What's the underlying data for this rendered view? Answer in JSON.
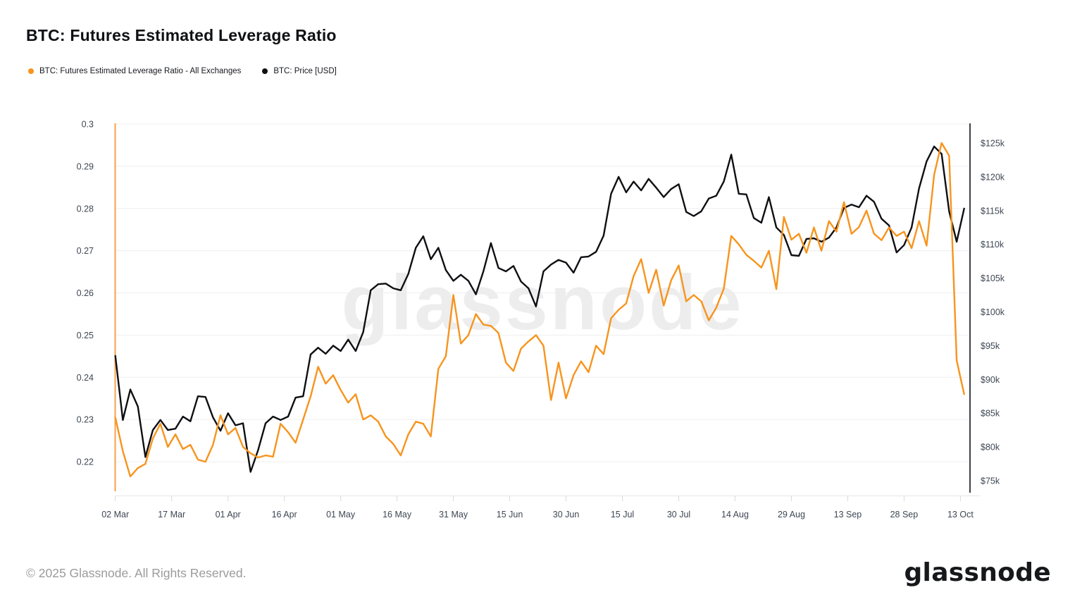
{
  "header": {
    "title": "BTC: Futures Estimated Leverage Ratio"
  },
  "legend": [
    {
      "label": "BTC: Futures Estimated Leverage Ratio - All Exchanges",
      "color": "#f7941d"
    },
    {
      "label": "BTC: Price [USD]",
      "color": "#0e0f12"
    }
  ],
  "watermark": {
    "text": "glassnode",
    "color": "#ededee"
  },
  "footer": {
    "copyright": "© 2025 Glassnode. All Rights Reserved.",
    "logo": "glassnode"
  },
  "colors": {
    "grid": "#f0f0f1",
    "axis_text": "#3e4753",
    "tick_mark": "#d9d9d9",
    "baseline": "#e6e6e6",
    "left_spine": "#f8a14b",
    "right_spine": "#3c4046"
  },
  "chart_data": {
    "type": "line",
    "title": "BTC: Futures Estimated Leverage Ratio",
    "legend_position": "top-left",
    "grid": "horizontal",
    "x_step_days": 2,
    "x_total_days": 226,
    "x_tick_days": [
      0,
      15,
      30,
      45,
      60,
      75,
      90,
      105,
      120,
      135,
      150,
      165,
      180,
      195,
      210,
      225
    ],
    "x_tick_labels": [
      "02 Mar",
      "17 Mar",
      "01 Apr",
      "16 Apr",
      "01 May",
      "16 May",
      "31 May",
      "15 Jun",
      "30 Jun",
      "15 Jul",
      "30 Jul",
      "14 Aug",
      "29 Aug",
      "13 Sep",
      "28 Sep",
      "13 Oct"
    ],
    "left_axis": {
      "range": [
        0.213,
        0.3
      ],
      "tick_values": [
        0.3,
        0.29,
        0.28,
        0.27,
        0.26,
        0.25,
        0.24,
        0.23,
        0.22
      ],
      "tick_labels": [
        "0.3",
        "0.29",
        "0.28",
        "0.27",
        "0.26",
        "0.25",
        "0.24",
        "0.23",
        "0.22"
      ]
    },
    "right_axis": {
      "range": [
        73.43,
        127.82
      ],
      "tick_values": [
        125,
        120,
        115,
        110,
        105,
        100,
        95,
        90,
        85,
        80,
        75
      ],
      "tick_labels": [
        "$125k",
        "$120k",
        "$115k",
        "$110k",
        "$105k",
        "$100k",
        "$95k",
        "$90k",
        "$85k",
        "$80k",
        "$75k"
      ]
    },
    "series": [
      {
        "name": "BTC: Futures Estimated Leverage Ratio - All Exchanges",
        "axis": "left",
        "color": "#f7941d",
        "values": [
          0.2305,
          0.2225,
          0.2165,
          0.2185,
          0.2195,
          0.2255,
          0.229,
          0.2235,
          0.2265,
          0.223,
          0.224,
          0.2205,
          0.22,
          0.224,
          0.231,
          0.2265,
          0.228,
          0.2235,
          0.222,
          0.221,
          0.2215,
          0.2212,
          0.229,
          0.227,
          0.2245,
          0.23,
          0.2355,
          0.2425,
          0.2385,
          0.2405,
          0.237,
          0.234,
          0.236,
          0.23,
          0.231,
          0.2295,
          0.226,
          0.2242,
          0.2215,
          0.2265,
          0.2295,
          0.229,
          0.226,
          0.242,
          0.245,
          0.2595,
          0.248,
          0.25,
          0.255,
          0.2525,
          0.2522,
          0.2505,
          0.2435,
          0.2415,
          0.2468,
          0.2485,
          0.25,
          0.2475,
          0.2346,
          0.2435,
          0.235,
          0.2405,
          0.2438,
          0.2412,
          0.2475,
          0.2455,
          0.254,
          0.256,
          0.2575,
          0.264,
          0.268,
          0.26,
          0.2655,
          0.257,
          0.263,
          0.2665,
          0.258,
          0.2595,
          0.258,
          0.2535,
          0.2565,
          0.261,
          0.2735,
          0.2715,
          0.269,
          0.2676,
          0.266,
          0.27,
          0.2609,
          0.278,
          0.2726,
          0.274,
          0.2695,
          0.2755,
          0.27,
          0.277,
          0.2745,
          0.2815,
          0.274,
          0.2756,
          0.2795,
          0.274,
          0.2725,
          0.2755,
          0.2735,
          0.2745,
          0.2706,
          0.277,
          0.2712,
          0.288,
          0.2955,
          0.2925,
          0.244,
          0.236
        ]
      },
      {
        "name": "BTC: Price [USD]",
        "axis": "right",
        "color": "#0e0f12",
        "values": [
          93.5,
          84.0,
          88.5,
          86.0,
          78.5,
          82.5,
          84.0,
          82.5,
          82.7,
          84.5,
          83.8,
          87.5,
          87.4,
          84.4,
          82.4,
          85.0,
          83.2,
          83.5,
          76.3,
          79.5,
          83.5,
          84.5,
          84.0,
          84.5,
          87.3,
          87.5,
          93.7,
          94.7,
          93.8,
          95.0,
          94.2,
          95.9,
          94.2,
          97.0,
          103.2,
          104.1,
          104.2,
          103.5,
          103.2,
          105.6,
          109.5,
          111.2,
          107.8,
          109.5,
          106.2,
          104.6,
          105.5,
          104.6,
          102.6,
          106.0,
          110.2,
          106.5,
          106.0,
          106.8,
          104.5,
          103.5,
          100.8,
          106.0,
          107.0,
          107.7,
          107.3,
          105.8,
          108.1,
          108.2,
          108.9,
          111.3,
          117.5,
          120.0,
          117.7,
          119.3,
          118.0,
          119.7,
          118.4,
          117.0,
          118.2,
          118.9,
          114.8,
          114.2,
          114.9,
          116.8,
          117.2,
          119.3,
          123.3,
          117.5,
          117.4,
          113.9,
          113.2,
          117.0,
          112.5,
          111.4,
          108.4,
          108.3,
          110.8,
          110.9,
          110.4,
          111.0,
          112.5,
          115.4,
          115.9,
          115.5,
          117.2,
          116.3,
          113.8,
          112.8,
          108.8,
          109.9,
          112.5,
          118.3,
          122.3,
          124.5,
          123.4,
          114.9,
          110.4,
          115.3
        ]
      }
    ]
  }
}
